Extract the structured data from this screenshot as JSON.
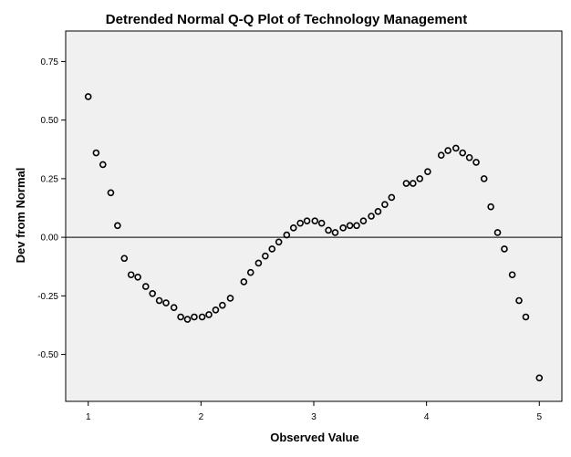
{
  "chart_data": {
    "type": "scatter",
    "title": "Detrended Normal Q-Q Plot of Technology Management",
    "xlabel": "Observed Value",
    "ylabel": "Dev from Normal",
    "xlim": [
      0.8,
      5.2
    ],
    "ylim": [
      -0.7,
      0.88
    ],
    "x_ticks": [
      1,
      2,
      3,
      4,
      5
    ],
    "x_tick_labels": [
      "1",
      "2",
      "3",
      "4",
      "5"
    ],
    "y_ticks": [
      -0.5,
      -0.25,
      0.0,
      0.25,
      0.5,
      0.75
    ],
    "y_tick_labels": [
      "-0.50",
      "-0.25",
      "0.00",
      "0.25",
      "0.50",
      "0.75"
    ],
    "reference_line_y": 0.0,
    "grid": false,
    "plot_background": "#f0f0f0",
    "marker_color": "#000000",
    "points": [
      {
        "x": 1.0,
        "y": 0.6
      },
      {
        "x": 1.07,
        "y": 0.36
      },
      {
        "x": 1.13,
        "y": 0.31
      },
      {
        "x": 1.2,
        "y": 0.19
      },
      {
        "x": 1.26,
        "y": 0.05
      },
      {
        "x": 1.32,
        "y": -0.09
      },
      {
        "x": 1.38,
        "y": -0.16
      },
      {
        "x": 1.44,
        "y": -0.17
      },
      {
        "x": 1.51,
        "y": -0.21
      },
      {
        "x": 1.57,
        "y": -0.24
      },
      {
        "x": 1.63,
        "y": -0.27
      },
      {
        "x": 1.69,
        "y": -0.28
      },
      {
        "x": 1.76,
        "y": -0.3
      },
      {
        "x": 1.82,
        "y": -0.34
      },
      {
        "x": 1.88,
        "y": -0.35
      },
      {
        "x": 1.94,
        "y": -0.34
      },
      {
        "x": 2.01,
        "y": -0.34
      },
      {
        "x": 2.07,
        "y": -0.33
      },
      {
        "x": 2.13,
        "y": -0.31
      },
      {
        "x": 2.19,
        "y": -0.29
      },
      {
        "x": 2.26,
        "y": -0.26
      },
      {
        "x": 2.38,
        "y": -0.19
      },
      {
        "x": 2.44,
        "y": -0.15
      },
      {
        "x": 2.51,
        "y": -0.11
      },
      {
        "x": 2.57,
        "y": -0.08
      },
      {
        "x": 2.63,
        "y": -0.05
      },
      {
        "x": 2.69,
        "y": -0.02
      },
      {
        "x": 2.76,
        "y": 0.01
      },
      {
        "x": 2.82,
        "y": 0.04
      },
      {
        "x": 2.88,
        "y": 0.06
      },
      {
        "x": 2.94,
        "y": 0.07
      },
      {
        "x": 3.01,
        "y": 0.07
      },
      {
        "x": 3.07,
        "y": 0.06
      },
      {
        "x": 3.13,
        "y": 0.03
      },
      {
        "x": 3.19,
        "y": 0.02
      },
      {
        "x": 3.26,
        "y": 0.04
      },
      {
        "x": 3.32,
        "y": 0.05
      },
      {
        "x": 3.38,
        "y": 0.05
      },
      {
        "x": 3.44,
        "y": 0.07
      },
      {
        "x": 3.51,
        "y": 0.09
      },
      {
        "x": 3.57,
        "y": 0.11
      },
      {
        "x": 3.63,
        "y": 0.14
      },
      {
        "x": 3.69,
        "y": 0.17
      },
      {
        "x": 3.82,
        "y": 0.23
      },
      {
        "x": 3.88,
        "y": 0.23
      },
      {
        "x": 3.94,
        "y": 0.25
      },
      {
        "x": 4.01,
        "y": 0.28
      },
      {
        "x": 4.13,
        "y": 0.35
      },
      {
        "x": 4.19,
        "y": 0.37
      },
      {
        "x": 4.26,
        "y": 0.38
      },
      {
        "x": 4.32,
        "y": 0.36
      },
      {
        "x": 4.38,
        "y": 0.34
      },
      {
        "x": 4.44,
        "y": 0.32
      },
      {
        "x": 4.51,
        "y": 0.25
      },
      {
        "x": 4.57,
        "y": 0.13
      },
      {
        "x": 4.63,
        "y": 0.02
      },
      {
        "x": 4.69,
        "y": -0.05
      },
      {
        "x": 4.76,
        "y": -0.16
      },
      {
        "x": 4.82,
        "y": -0.27
      },
      {
        "x": 4.88,
        "y": -0.34
      },
      {
        "x": 5.0,
        "y": -0.6
      }
    ]
  }
}
